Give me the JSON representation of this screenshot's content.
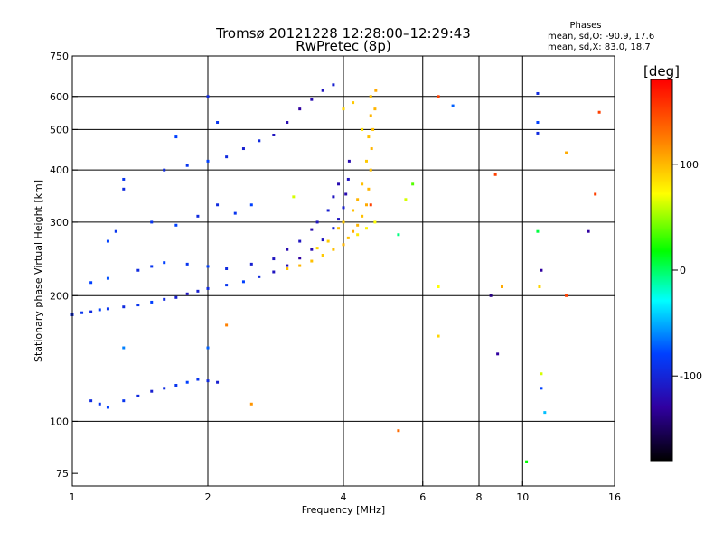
{
  "chart_data": {
    "type": "scatter",
    "title": "Tromsø 20121228 12:28:00–12:29:43",
    "subtitle": "RwPretec (8p)",
    "xlabel": "Frequency [MHz]",
    "ylabel": "Stationary phase Virtual Height [km]",
    "xscale": "log",
    "yscale": "log",
    "xlim": [
      1,
      16
    ],
    "ylim": [
      70,
      750
    ],
    "x_ticks": [
      1,
      2,
      4,
      6,
      8,
      10,
      16
    ],
    "x_tick_labels": [
      "1",
      "2",
      "4",
      "6",
      "8",
      "10",
      "16"
    ],
    "y_ticks": [
      75,
      100,
      200,
      300,
      400,
      500,
      600,
      750
    ],
    "y_tick_labels": [
      "75",
      "100",
      "200",
      "300",
      "400",
      "500",
      "600",
      "750"
    ],
    "grid_x": [
      2,
      4,
      6,
      8,
      10
    ],
    "grid_y": [
      100,
      200,
      300,
      400,
      500,
      600
    ],
    "phase_title": "Phases",
    "phase_stats": [
      "mean, sd,O: -90.9, 17.6",
      "mean, sd,X:  83.0, 18.7"
    ],
    "colorbar": {
      "label": "[deg]",
      "range": [
        -180,
        180
      ],
      "tick_values": [
        100,
        0,
        -100
      ],
      "tick_labels": [
        "100",
        "0",
        "-100"
      ]
    },
    "series": [
      {
        "mode": "O",
        "points": [
          [
            1.0,
            180,
            -110
          ],
          [
            1.05,
            182,
            -105
          ],
          [
            1.1,
            183,
            -110
          ],
          [
            1.15,
            185,
            -100
          ],
          [
            1.2,
            186,
            -105
          ],
          [
            1.3,
            188,
            -110
          ],
          [
            1.4,
            190,
            -105
          ],
          [
            1.5,
            193,
            -100
          ],
          [
            1.6,
            196,
            -110
          ],
          [
            1.7,
            198,
            -115
          ],
          [
            1.8,
            202,
            -120
          ],
          [
            1.9,
            205,
            -115
          ],
          [
            2.0,
            208,
            -110
          ],
          [
            2.2,
            212,
            -105
          ],
          [
            2.4,
            216,
            -100
          ],
          [
            2.6,
            222,
            -110
          ],
          [
            2.8,
            228,
            -120
          ],
          [
            3.0,
            236,
            -125
          ],
          [
            3.2,
            246,
            -130
          ],
          [
            3.4,
            258,
            -125
          ],
          [
            3.6,
            272,
            -120
          ],
          [
            3.8,
            290,
            -115
          ],
          [
            3.9,
            305,
            -120
          ],
          [
            4.0,
            325,
            -115
          ],
          [
            4.05,
            350,
            -125
          ],
          [
            4.1,
            380,
            -120
          ],
          [
            4.12,
            420,
            -125
          ],
          [
            1.4,
            230,
            -110
          ],
          [
            1.5,
            235,
            -105
          ],
          [
            1.6,
            240,
            -100
          ],
          [
            1.8,
            238,
            -105
          ],
          [
            2.0,
            235,
            -100
          ],
          [
            2.2,
            232,
            -110
          ],
          [
            2.5,
            238,
            -115
          ],
          [
            2.8,
            245,
            -120
          ],
          [
            3.0,
            258,
            -125
          ],
          [
            3.2,
            270,
            -120
          ],
          [
            3.4,
            288,
            -125
          ],
          [
            3.5,
            300,
            -120
          ],
          [
            3.7,
            320,
            -115
          ],
          [
            3.8,
            345,
            -120
          ],
          [
            3.9,
            370,
            -125
          ],
          [
            1.1,
            112,
            -110
          ],
          [
            1.15,
            110,
            -105
          ],
          [
            1.2,
            108,
            -100
          ],
          [
            1.3,
            112,
            -105
          ],
          [
            1.4,
            115,
            -110
          ],
          [
            1.5,
            118,
            -115
          ],
          [
            1.6,
            120,
            -110
          ],
          [
            1.7,
            122,
            -105
          ],
          [
            1.8,
            124,
            -100
          ],
          [
            1.9,
            126,
            -105
          ],
          [
            2.0,
            125,
            -110
          ],
          [
            2.1,
            124,
            -115
          ],
          [
            1.6,
            400,
            -110
          ],
          [
            1.8,
            410,
            -105
          ],
          [
            2.0,
            420,
            -100
          ],
          [
            2.2,
            430,
            -110
          ],
          [
            2.4,
            450,
            -115
          ],
          [
            2.6,
            470,
            -110
          ],
          [
            2.8,
            485,
            -120
          ],
          [
            3.0,
            520,
            -125
          ],
          [
            3.2,
            560,
            -130
          ],
          [
            3.4,
            590,
            -125
          ],
          [
            3.6,
            620,
            -120
          ],
          [
            3.8,
            640,
            -115
          ],
          [
            1.3,
            380,
            -105
          ],
          [
            1.3,
            360,
            -110
          ],
          [
            1.5,
            300,
            -105
          ],
          [
            1.7,
            295,
            -100
          ],
          [
            1.9,
            310,
            -110
          ],
          [
            1.2,
            270,
            -100
          ],
          [
            1.25,
            285,
            -105
          ],
          [
            1.1,
            215,
            -100
          ],
          [
            1.2,
            220,
            -95
          ],
          [
            2.1,
            330,
            -110
          ],
          [
            2.3,
            315,
            -105
          ],
          [
            2.5,
            330,
            -100
          ],
          [
            2.0,
            150,
            -90
          ],
          [
            1.3,
            150,
            -80
          ],
          [
            1.7,
            480,
            -100
          ],
          [
            2.0,
            600,
            -110
          ],
          [
            2.1,
            520,
            -105
          ]
        ]
      },
      {
        "mode": "X",
        "points": [
          [
            3.0,
            232,
            90
          ],
          [
            3.2,
            236,
            95
          ],
          [
            3.4,
            242,
            90
          ],
          [
            3.6,
            250,
            85
          ],
          [
            3.8,
            258,
            90
          ],
          [
            4.0,
            265,
            95
          ],
          [
            4.1,
            275,
            90
          ],
          [
            4.2,
            285,
            100
          ],
          [
            4.3,
            295,
            95
          ],
          [
            4.4,
            310,
            90
          ],
          [
            4.5,
            330,
            100
          ],
          [
            4.55,
            360,
            95
          ],
          [
            4.6,
            400,
            90
          ],
          [
            4.62,
            450,
            95
          ],
          [
            4.65,
            500,
            90
          ],
          [
            4.7,
            560,
            95
          ],
          [
            4.72,
            620,
            100
          ],
          [
            3.5,
            260,
            80
          ],
          [
            3.7,
            270,
            85
          ],
          [
            3.9,
            290,
            90
          ],
          [
            4.0,
            300,
            85
          ],
          [
            4.2,
            320,
            90
          ],
          [
            4.3,
            340,
            95
          ],
          [
            4.4,
            370,
            90
          ],
          [
            4.5,
            420,
            85
          ],
          [
            4.55,
            480,
            90
          ],
          [
            4.6,
            540,
            95
          ],
          [
            4.6,
            600,
            90
          ],
          [
            4.2,
            580,
            85
          ],
          [
            4.0,
            560,
            80
          ],
          [
            4.4,
            500,
            75
          ],
          [
            4.3,
            280,
            70
          ],
          [
            4.5,
            290,
            65
          ],
          [
            4.7,
            300,
            60
          ],
          [
            3.1,
            345,
            50
          ],
          [
            4.6,
            330,
            150
          ],
          [
            6.5,
            600,
            150
          ],
          [
            8.7,
            390,
            150
          ],
          [
            14.8,
            550,
            150
          ],
          [
            12.5,
            440,
            100
          ],
          [
            2.2,
            170,
            120
          ],
          [
            2.5,
            110,
            110
          ]
        ]
      },
      {
        "mode": "scattered",
        "points": [
          [
            5.5,
            340,
            50
          ],
          [
            5.7,
            370,
            20
          ],
          [
            5.3,
            280,
            -20
          ],
          [
            6.5,
            210,
            60
          ],
          [
            6.5,
            160,
            80
          ],
          [
            7.0,
            570,
            -90
          ],
          [
            8.5,
            200,
            -140
          ],
          [
            8.8,
            145,
            -130
          ],
          [
            9.0,
            210,
            100
          ],
          [
            10.2,
            80,
            0
          ],
          [
            10.8,
            610,
            -110
          ],
          [
            10.8,
            520,
            -100
          ],
          [
            10.8,
            490,
            -110
          ],
          [
            10.8,
            285,
            -10
          ],
          [
            11.0,
            230,
            -130
          ],
          [
            11.0,
            120,
            -100
          ],
          [
            11.2,
            105,
            -60
          ],
          [
            11.0,
            130,
            50
          ],
          [
            10.9,
            210,
            80
          ],
          [
            12.5,
            200,
            150
          ],
          [
            14.0,
            285,
            -130
          ],
          [
            14.5,
            350,
            150
          ],
          [
            5.3,
            95,
            130
          ]
        ]
      }
    ]
  }
}
